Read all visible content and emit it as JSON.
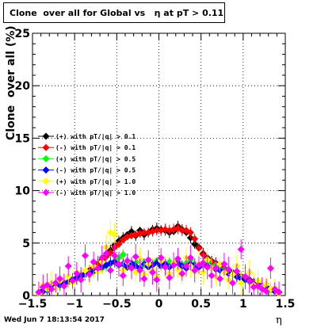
{
  "title": "Clone  over all for Global vs   η at pT > 0.11",
  "footer": "Wed Jun  7 18:13:54 2017",
  "chart_data": {
    "type": "scatter",
    "title": "Clone  over all for Global vs   η at pT > 0.11",
    "xlabel": "η",
    "ylabel": "Clone  over all (%)",
    "xlim": [
      -1.5,
      1.5
    ],
    "ylim": [
      0,
      25
    ],
    "xticks": [
      "−1.5",
      "−1",
      "−0.5",
      "0",
      "0.5",
      "1",
      "1.5"
    ],
    "yticks": [
      "0",
      "5",
      "10",
      "15",
      "20",
      "25"
    ],
    "grid": true,
    "legend_position": "left",
    "series": [
      {
        "name": "(+) with pT/|q| > 0.1",
        "color": "#000000",
        "x": [
          -1.425,
          -1.375,
          -1.325,
          -1.275,
          -1.225,
          -1.175,
          -1.125,
          -1.075,
          -1.025,
          -0.975,
          -0.925,
          -0.875,
          -0.825,
          -0.775,
          -0.725,
          -0.675,
          -0.625,
          -0.575,
          -0.525,
          -0.475,
          -0.425,
          -0.375,
          -0.325,
          -0.275,
          -0.225,
          -0.175,
          -0.125,
          -0.075,
          -0.025,
          0.025,
          0.075,
          0.125,
          0.175,
          0.225,
          0.275,
          0.325,
          0.375,
          0.425,
          0.475,
          0.525,
          0.575,
          0.625,
          0.675,
          0.725,
          0.775,
          0.825,
          0.875,
          0.925,
          0.975,
          1.025,
          1.075,
          1.125,
          1.175,
          1.225,
          1.275,
          1.325,
          1.375,
          1.425
        ],
        "y": [
          0.3,
          0.5,
          0.6,
          0.8,
          0.9,
          1.0,
          1.2,
          1.3,
          1.5,
          1.7,
          1.9,
          2.1,
          2.4,
          2.7,
          3.0,
          3.4,
          3.8,
          4.3,
          4.8,
          5.2,
          5.5,
          5.8,
          6.1,
          5.7,
          6.2,
          5.8,
          6.0,
          6.3,
          6.4,
          6.3,
          6.2,
          6.0,
          6.1,
          6.6,
          6.3,
          6.0,
          5.5,
          4.9,
          4.6,
          4.0,
          3.6,
          3.3,
          3.1,
          2.9,
          2.6,
          2.4,
          2.2,
          2.0,
          1.8,
          1.7,
          1.5,
          1.3,
          1.1,
          0.9,
          0.8,
          0.6,
          0.4,
          0.3
        ]
      },
      {
        "name": "(-) with pT/|q| > 0.1",
        "color": "#ff0000",
        "x": [
          -1.425,
          -1.375,
          -1.325,
          -1.275,
          -1.225,
          -1.175,
          -1.125,
          -1.075,
          -1.025,
          -0.975,
          -0.925,
          -0.875,
          -0.825,
          -0.775,
          -0.725,
          -0.675,
          -0.625,
          -0.575,
          -0.525,
          -0.475,
          -0.425,
          -0.375,
          -0.325,
          -0.275,
          -0.225,
          -0.175,
          -0.125,
          -0.075,
          -0.025,
          0.025,
          0.075,
          0.125,
          0.175,
          0.225,
          0.275,
          0.325,
          0.375,
          0.425,
          0.475,
          0.525,
          0.575,
          0.625,
          0.675,
          0.725,
          0.775,
          0.825,
          0.875,
          0.925,
          0.975,
          1.025,
          1.075,
          1.125,
          1.175,
          1.225,
          1.275,
          1.325,
          1.375,
          1.425
        ],
        "y": [
          0.3,
          0.4,
          0.6,
          0.7,
          0.9,
          1.0,
          1.1,
          1.3,
          1.5,
          1.6,
          1.8,
          2.0,
          2.3,
          2.6,
          2.9,
          3.3,
          3.7,
          4.1,
          4.6,
          4.9,
          5.3,
          5.6,
          5.7,
          5.8,
          5.9,
          6.0,
          6.0,
          6.1,
          6.2,
          6.2,
          6.3,
          6.2,
          6.3,
          6.4,
          6.2,
          6.2,
          6.0,
          5.4,
          4.5,
          3.9,
          3.5,
          3.2,
          3.0,
          2.8,
          2.5,
          2.3,
          2.1,
          1.9,
          1.8,
          1.6,
          1.4,
          1.2,
          1.1,
          0.9,
          0.7,
          0.5,
          0.4,
          0.3
        ]
      },
      {
        "name": "(+) with pT/|q| > 0.5",
        "color": "#00ff00",
        "x": [
          -1.425,
          -1.375,
          -1.325,
          -1.275,
          -1.225,
          -1.175,
          -1.125,
          -1.075,
          -1.025,
          -0.975,
          -0.925,
          -0.875,
          -0.825,
          -0.775,
          -0.725,
          -0.675,
          -0.625,
          -0.575,
          -0.525,
          -0.475,
          -0.425,
          -0.375,
          -0.325,
          -0.275,
          -0.225,
          -0.175,
          -0.125,
          -0.075,
          -0.025,
          0.025,
          0.075,
          0.125,
          0.175,
          0.225,
          0.275,
          0.325,
          0.375,
          0.425,
          0.475,
          0.525,
          0.575,
          0.625,
          0.675,
          0.725,
          0.775,
          0.825,
          0.875,
          0.925,
          0.975,
          1.025,
          1.075,
          1.125,
          1.175,
          1.225,
          1.275,
          1.325,
          1.375,
          1.425
        ],
        "y": [
          0.2,
          0.4,
          0.6,
          0.7,
          0.8,
          1.0,
          1.1,
          1.3,
          1.4,
          1.6,
          1.8,
          2.0,
          2.2,
          2.3,
          2.5,
          2.6,
          2.8,
          3.0,
          3.3,
          3.6,
          3.9,
          3.0,
          2.8,
          3.1,
          3.4,
          2.9,
          3.2,
          3.0,
          3.3,
          3.1,
          2.9,
          3.2,
          3.0,
          3.3,
          2.8,
          3.1,
          3.4,
          3.0,
          2.8,
          2.9,
          3.2,
          2.7,
          2.9,
          2.5,
          2.4,
          2.2,
          2.0,
          1.8,
          1.7,
          1.5,
          1.3,
          1.2,
          1.0,
          0.9,
          0.7,
          0.5,
          0.4,
          0.3
        ]
      },
      {
        "name": "(-) with pT/|q| > 0.5",
        "color": "#0000ff",
        "x": [
          -1.425,
          -1.375,
          -1.325,
          -1.275,
          -1.225,
          -1.175,
          -1.125,
          -1.075,
          -1.025,
          -0.975,
          -0.925,
          -0.875,
          -0.825,
          -0.775,
          -0.725,
          -0.675,
          -0.625,
          -0.575,
          -0.525,
          -0.475,
          -0.425,
          -0.375,
          -0.325,
          -0.275,
          -0.225,
          -0.175,
          -0.125,
          -0.075,
          -0.025,
          0.025,
          0.075,
          0.125,
          0.175,
          0.225,
          0.275,
          0.325,
          0.375,
          0.425,
          0.475,
          0.525,
          0.575,
          0.625,
          0.675,
          0.725,
          0.775,
          0.825,
          0.875,
          0.925,
          0.975,
          1.025,
          1.075,
          1.125,
          1.175,
          1.225,
          1.275,
          1.325,
          1.375,
          1.425
        ],
        "y": [
          0.3,
          0.4,
          0.5,
          0.7,
          0.8,
          1.0,
          1.1,
          1.3,
          1.5,
          1.7,
          1.8,
          2.0,
          2.1,
          2.3,
          2.5,
          2.7,
          2.9,
          3.1,
          3.2,
          2.9,
          3.0,
          2.7,
          3.1,
          2.8,
          2.6,
          3.0,
          2.7,
          2.9,
          3.1,
          2.8,
          3.0,
          2.7,
          2.9,
          3.1,
          2.8,
          2.6,
          3.0,
          2.9,
          2.7,
          3.1,
          2.8,
          2.6,
          2.5,
          2.4,
          2.3,
          2.1,
          2.0,
          1.8,
          1.6,
          1.5,
          1.4,
          1.2,
          1.0,
          0.9,
          0.7,
          0.6,
          0.4,
          0.3
        ]
      },
      {
        "name": "(+) with pT/|q| > 1.0",
        "color": "#ffff00",
        "x": [
          -1.425,
          -1.375,
          -1.325,
          -1.275,
          -1.225,
          -1.175,
          -1.125,
          -1.075,
          -1.025,
          -0.975,
          -0.925,
          -0.875,
          -0.825,
          -0.775,
          -0.725,
          -0.675,
          -0.625,
          -0.575,
          -0.525,
          -0.475,
          -0.425,
          -0.375,
          -0.325,
          -0.275,
          -0.225,
          -0.175,
          -0.125,
          -0.075,
          -0.025,
          0.025,
          0.075,
          0.125,
          0.175,
          0.225,
          0.275,
          0.325,
          0.375,
          0.425,
          0.475,
          0.525,
          0.575,
          0.625,
          0.675,
          0.725,
          0.775,
          0.825,
          0.875,
          0.925,
          0.975,
          1.025,
          1.075,
          1.125,
          1.175,
          1.225,
          1.275,
          1.325,
          1.375,
          1.425
        ],
        "y": [
          0.2,
          1.0,
          0.6,
          1.2,
          0.7,
          1.4,
          0.9,
          1.8,
          1.2,
          2.2,
          1.5,
          2.4,
          1.9,
          2.8,
          2.3,
          3.2,
          4.6,
          6.0,
          5.8,
          3.0,
          2.4,
          3.2,
          2.6,
          2.2,
          3.5,
          2.0,
          3.0,
          2.4,
          1.8,
          3.3,
          2.7,
          2.1,
          3.1,
          2.5,
          2.0,
          3.6,
          2.8,
          2.3,
          3.0,
          2.2,
          3.4,
          2.6,
          1.8,
          3.0,
          2.2,
          1.5,
          2.0,
          2.8,
          1.2,
          1.8,
          2.2,
          1.0,
          1.4,
          0.8,
          1.1,
          0.6,
          0.7,
          0.2
        ]
      },
      {
        "name": "(-) with pT/|q| > 1.0",
        "color": "#ff00ff",
        "x": [
          -1.425,
          -1.375,
          -1.325,
          -1.275,
          -1.225,
          -1.175,
          -1.125,
          -1.075,
          -1.025,
          -0.975,
          -0.925,
          -0.875,
          -0.825,
          -0.775,
          -0.725,
          -0.675,
          -0.625,
          -0.575,
          -0.525,
          -0.475,
          -0.425,
          -0.375,
          -0.325,
          -0.275,
          -0.225,
          -0.175,
          -0.125,
          -0.075,
          -0.025,
          0.025,
          0.075,
          0.125,
          0.175,
          0.225,
          0.275,
          0.325,
          0.375,
          0.425,
          0.475,
          0.525,
          0.575,
          0.625,
          0.675,
          0.725,
          0.775,
          0.825,
          0.875,
          0.925,
          0.975,
          1.025,
          1.075,
          1.125,
          1.175,
          1.225,
          1.275,
          1.325,
          1.375,
          1.425
        ],
        "y": [
          0.3,
          0.8,
          1.0,
          0.6,
          1.2,
          1.6,
          0.9,
          2.8,
          1.4,
          2.1,
          1.5,
          3.8,
          2.0,
          3.2,
          2.6,
          3.6,
          4.0,
          2.4,
          3.8,
          3.0,
          1.9,
          3.3,
          2.6,
          3.7,
          2.4,
          1.6,
          3.4,
          2.2,
          1.5,
          3.6,
          2.7,
          1.7,
          2.9,
          3.5,
          2.1,
          2.8,
          3.6,
          2.4,
          2.9,
          3.1,
          2.7,
          1.9,
          2.6,
          1.6,
          3.0,
          2.5,
          1.2,
          2.3,
          4.4,
          1.8,
          1.4,
          0.8,
          0.9,
          0.6,
          0.4,
          2.6,
          0.6,
          0.3
        ]
      }
    ]
  }
}
